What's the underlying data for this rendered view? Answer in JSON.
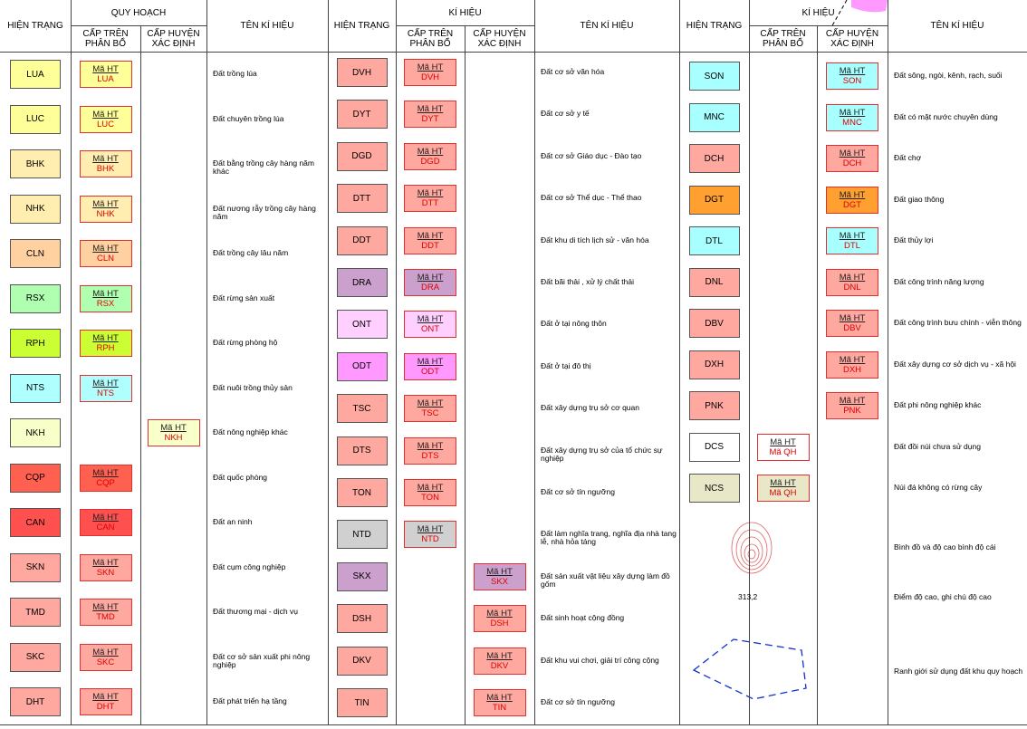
{
  "groups": [
    {
      "header": {
        "status": "HIỆN TRẠNG",
        "plan": "QUY HOẠCH",
        "upper": "CẤP TRÊN PHÂN BỔ",
        "district": "CẤP HUYỆN XÁC ĐỊNH",
        "name": "TÊN KÍ HIỆU"
      },
      "rows": [
        {
          "status": "LUA",
          "color": "#ffff99",
          "upper": {
            "top": "Mã HT",
            "bottom": "LUA"
          },
          "district": null,
          "name": "Đất trồng lúa"
        },
        {
          "status": "LUC",
          "color": "#ffff99",
          "upper": {
            "top": "Mã HT",
            "bottom": "LUC"
          },
          "district": null,
          "name": "Đất chuyên trồng lúa"
        },
        {
          "status": "BHK",
          "color": "#ffeeb0",
          "upper": {
            "top": "Mã HT",
            "bottom": "BHK"
          },
          "district": null,
          "name": "Đất bằng trồng cây hàng năm khác"
        },
        {
          "status": "NHK",
          "color": "#ffeeb0",
          "upper": {
            "top": "Mã HT",
            "bottom": "NHK"
          },
          "district": null,
          "name": "Đất nương rẫy trồng cây hàng năm"
        },
        {
          "status": "CLN",
          "color": "#ffd0a0",
          "upper": {
            "top": "Mã HT",
            "bottom": "CLN"
          },
          "district": null,
          "name": "Đất trồng cây lâu năm"
        },
        {
          "status": "RSX",
          "color": "#b0ffb0",
          "upper": {
            "top": "Mã HT",
            "bottom": "RSX"
          },
          "district": null,
          "name": "Đất rừng sản xuất"
        },
        {
          "status": "RPH",
          "color": "#ccff33",
          "upper": {
            "top": "Mã HT",
            "bottom": "RPH"
          },
          "district": null,
          "name": "Đất rừng phòng hộ"
        },
        {
          "status": "NTS",
          "color": "#b0ffff",
          "upper": {
            "top": "Mã HT",
            "bottom": "NTS"
          },
          "district": null,
          "name": "Đất nuôi trồng thủy sản"
        },
        {
          "status": "NKH",
          "color": "#f8ffc8",
          "upper": null,
          "district": {
            "top": "Mã HT",
            "bottom": "NKH"
          },
          "name": "Đất nông nghiệp khác"
        },
        {
          "status": "CQP",
          "color": "#ff6050",
          "upper": {
            "top": "Mã HT",
            "bottom": "CQP"
          },
          "district": null,
          "name": "Đất quốc phòng"
        },
        {
          "status": "CAN",
          "color": "#ff5050",
          "upper": {
            "top": "Mã HT",
            "bottom": "CAN"
          },
          "district": null,
          "name": "Đất an ninh"
        },
        {
          "status": "SKN",
          "color": "#ffa8a0",
          "upper": {
            "top": "Mã HT",
            "bottom": "SKN"
          },
          "district": null,
          "name": "Đất cụm công nghiệp"
        },
        {
          "status": "TMD",
          "color": "#ffa8a0",
          "upper": {
            "top": "Mã HT",
            "bottom": "TMD"
          },
          "district": null,
          "name": "Đất thương mại - dịch vụ"
        },
        {
          "status": "SKC",
          "color": "#ffa8a0",
          "upper": {
            "top": "Mã HT",
            "bottom": "SKC"
          },
          "district": null,
          "name": "Đất cơ sở sản xuất phi nông nghiệp"
        },
        {
          "status": "DHT",
          "color": "#ffa8a0",
          "upper": {
            "top": "Mã HT",
            "bottom": "DHT"
          },
          "district": null,
          "name": "Đất phát triển hạ tầng"
        }
      ]
    },
    {
      "header": {
        "status": "HIỆN TRẠNG",
        "plan": "KÍ HIỆU",
        "upper": "CẤP TRÊN PHÂN BỔ",
        "district": "CẤP HUYỆN XÁC ĐỊNH",
        "name": "TÊN KÍ HIỆU"
      },
      "rows": [
        {
          "status": "DVH",
          "color": "#ffa8a0",
          "upper": {
            "top": "Mã HT",
            "bottom": "DVH"
          },
          "district": null,
          "name": "Đất cơ sở văn hóa"
        },
        {
          "status": "DYT",
          "color": "#ffa8a0",
          "upper": {
            "top": "Mã HT",
            "bottom": "DYT"
          },
          "district": null,
          "name": "Đất cơ sở y tế"
        },
        {
          "status": "DGD",
          "color": "#ffa8a0",
          "upper": {
            "top": "Mã HT",
            "bottom": "DGD"
          },
          "district": null,
          "name": "Đất cơ sở Giáo dục - Đào tạo"
        },
        {
          "status": "DTT",
          "color": "#ffa8a0",
          "upper": {
            "top": "Mã HT",
            "bottom": "DTT"
          },
          "district": null,
          "name": "Đất cơ sở Thể dục - Thể thao"
        },
        {
          "status": "DDT",
          "color": "#ffa8a0",
          "upper": {
            "top": "Mã HT",
            "bottom": "DDT"
          },
          "district": null,
          "name": "Đất khu di tích lịch sử - văn hóa"
        },
        {
          "status": "DRA",
          "color": "#cca0cc",
          "upper": {
            "top": "Mã HT",
            "bottom": "DRA"
          },
          "district": null,
          "name": "Đất bãi thải , xử lý chất thải"
        },
        {
          "status": "ONT",
          "color": "#ffd0ff",
          "upper": {
            "top": "Mã HT",
            "bottom": "ONT"
          },
          "district": null,
          "name": "Đất ở tại nông thôn"
        },
        {
          "status": "ODT",
          "color": "#ff99ff",
          "upper": {
            "top": "Mã HT",
            "bottom": "ODT"
          },
          "district": null,
          "name": "Đất ở tại đô thị"
        },
        {
          "status": "TSC",
          "color": "#ffa8a0",
          "upper": {
            "top": "Mã HT",
            "bottom": "TSC"
          },
          "district": null,
          "name": "Đất xây dựng trụ sở cơ quan"
        },
        {
          "status": "DTS",
          "color": "#ffa8a0",
          "upper": {
            "top": "Mã HT",
            "bottom": "DTS"
          },
          "district": null,
          "name": "Đất xây dựng trụ sở của tổ chức sự nghiệp"
        },
        {
          "status": "TON",
          "color": "#ffa8a0",
          "upper": {
            "top": "Mã HT",
            "bottom": "TON"
          },
          "district": null,
          "name": "Đất cơ sở tín ngưỡng"
        },
        {
          "status": "NTD",
          "color": "#d0d0d0",
          "upper": {
            "top": "Mã HT",
            "bottom": "NTD"
          },
          "district": null,
          "name": "Đất làm nghĩa trang, nghĩa địa nhà tang lễ, nhà hỏa táng"
        },
        {
          "status": "SKX",
          "color": "#cca0cc",
          "upper": null,
          "district": {
            "top": "Mã HT",
            "bottom": "SKX"
          },
          "name": "Đất sản xuất vật liệu xây dựng làm đồ gốm"
        },
        {
          "status": "DSH",
          "color": "#ffa8a0",
          "upper": null,
          "district": {
            "top": "Mã HT",
            "bottom": "DSH"
          },
          "name": "Đất sinh hoạt cộng đồng"
        },
        {
          "status": "DKV",
          "color": "#ffa8a0",
          "upper": null,
          "district": {
            "top": "Mã HT",
            "bottom": "DKV"
          },
          "name": "Đất khu vui chơi, giải trí công cộng"
        },
        {
          "status": "TIN",
          "color": "#ffa8a0",
          "upper": null,
          "district": {
            "top": "Mã HT",
            "bottom": "TIN"
          },
          "name": "Đất cơ sở tín ngưỡng"
        }
      ]
    },
    {
      "header": {
        "status": "HIỆN TRẠNG",
        "plan": "KÍ HIỆU",
        "upper": "CẤP TRÊN PHÂN BỔ",
        "district": "CẤP HUYỆN XÁC ĐỊNH",
        "name": "TÊN KÍ HIỆU"
      },
      "rows": [
        {
          "status": "SON",
          "color": "#a8ffff",
          "upper": null,
          "district": {
            "top": "Mã HT",
            "bottom": "SON"
          },
          "name": "Đất sông, ngòi, kênh, rạch, suối"
        },
        {
          "status": "MNC",
          "color": "#a8ffff",
          "upper": null,
          "district": {
            "top": "Mã HT",
            "bottom": "MNC"
          },
          "name": "Đất có mặt nước chuyên dùng"
        },
        {
          "status": "DCH",
          "color": "#ffa8a0",
          "upper": null,
          "district": {
            "top": "Mã HT",
            "bottom": "DCH"
          },
          "name": "Đất chợ"
        },
        {
          "status": "DGT",
          "color": "#ffa030",
          "upper": null,
          "district": {
            "top": "Mã HT",
            "bottom": "DGT"
          },
          "name": "Đất giao thông"
        },
        {
          "status": "DTL",
          "color": "#a8ffff",
          "upper": null,
          "district": {
            "top": "Mã HT",
            "bottom": "DTL"
          },
          "name": "Đất thủy lợi"
        },
        {
          "status": "DNL",
          "color": "#ffa8a0",
          "upper": null,
          "district": {
            "top": "Mã HT",
            "bottom": "DNL"
          },
          "name": "Đất công trình năng lượng"
        },
        {
          "status": "DBV",
          "color": "#ffa8a0",
          "upper": null,
          "district": {
            "top": "Mã HT",
            "bottom": "DBV"
          },
          "name": "Đất công trình bưu chính - viễn thông"
        },
        {
          "status": "DXH",
          "color": "#ffa8a0",
          "upper": null,
          "district": {
            "top": "Mã HT",
            "bottom": "DXH"
          },
          "name": "Đất xây dựng cơ sở dịch vụ - xã hội"
        },
        {
          "status": "PNK",
          "color": "#ffa8a0",
          "upper": null,
          "district": {
            "top": "Mã HT",
            "bottom": "PNK"
          },
          "name": "Đất phi nông nghiệp khác"
        },
        {
          "status": "DCS",
          "color": "#ffffff",
          "upper": {
            "top": "Mã HT",
            "bottom": "Mã QH"
          },
          "district": null,
          "name": "Đất đồi núi chưa sử dụng"
        },
        {
          "status": "NCS",
          "color": "#e8e8c8",
          "upper": {
            "top": "Mã HT",
            "bottom": "Mã QH"
          },
          "district": null,
          "name": "Núi đá không có rừng cây"
        }
      ],
      "specials": [
        {
          "name": "Bình đồ và độ cao bình độ cái"
        },
        {
          "name": "Điểm độ cao, ghi chú độ cao",
          "label": "313,2"
        },
        {
          "name": "Ranh giới sử dụng đất khu quy hoạch"
        }
      ]
    }
  ]
}
